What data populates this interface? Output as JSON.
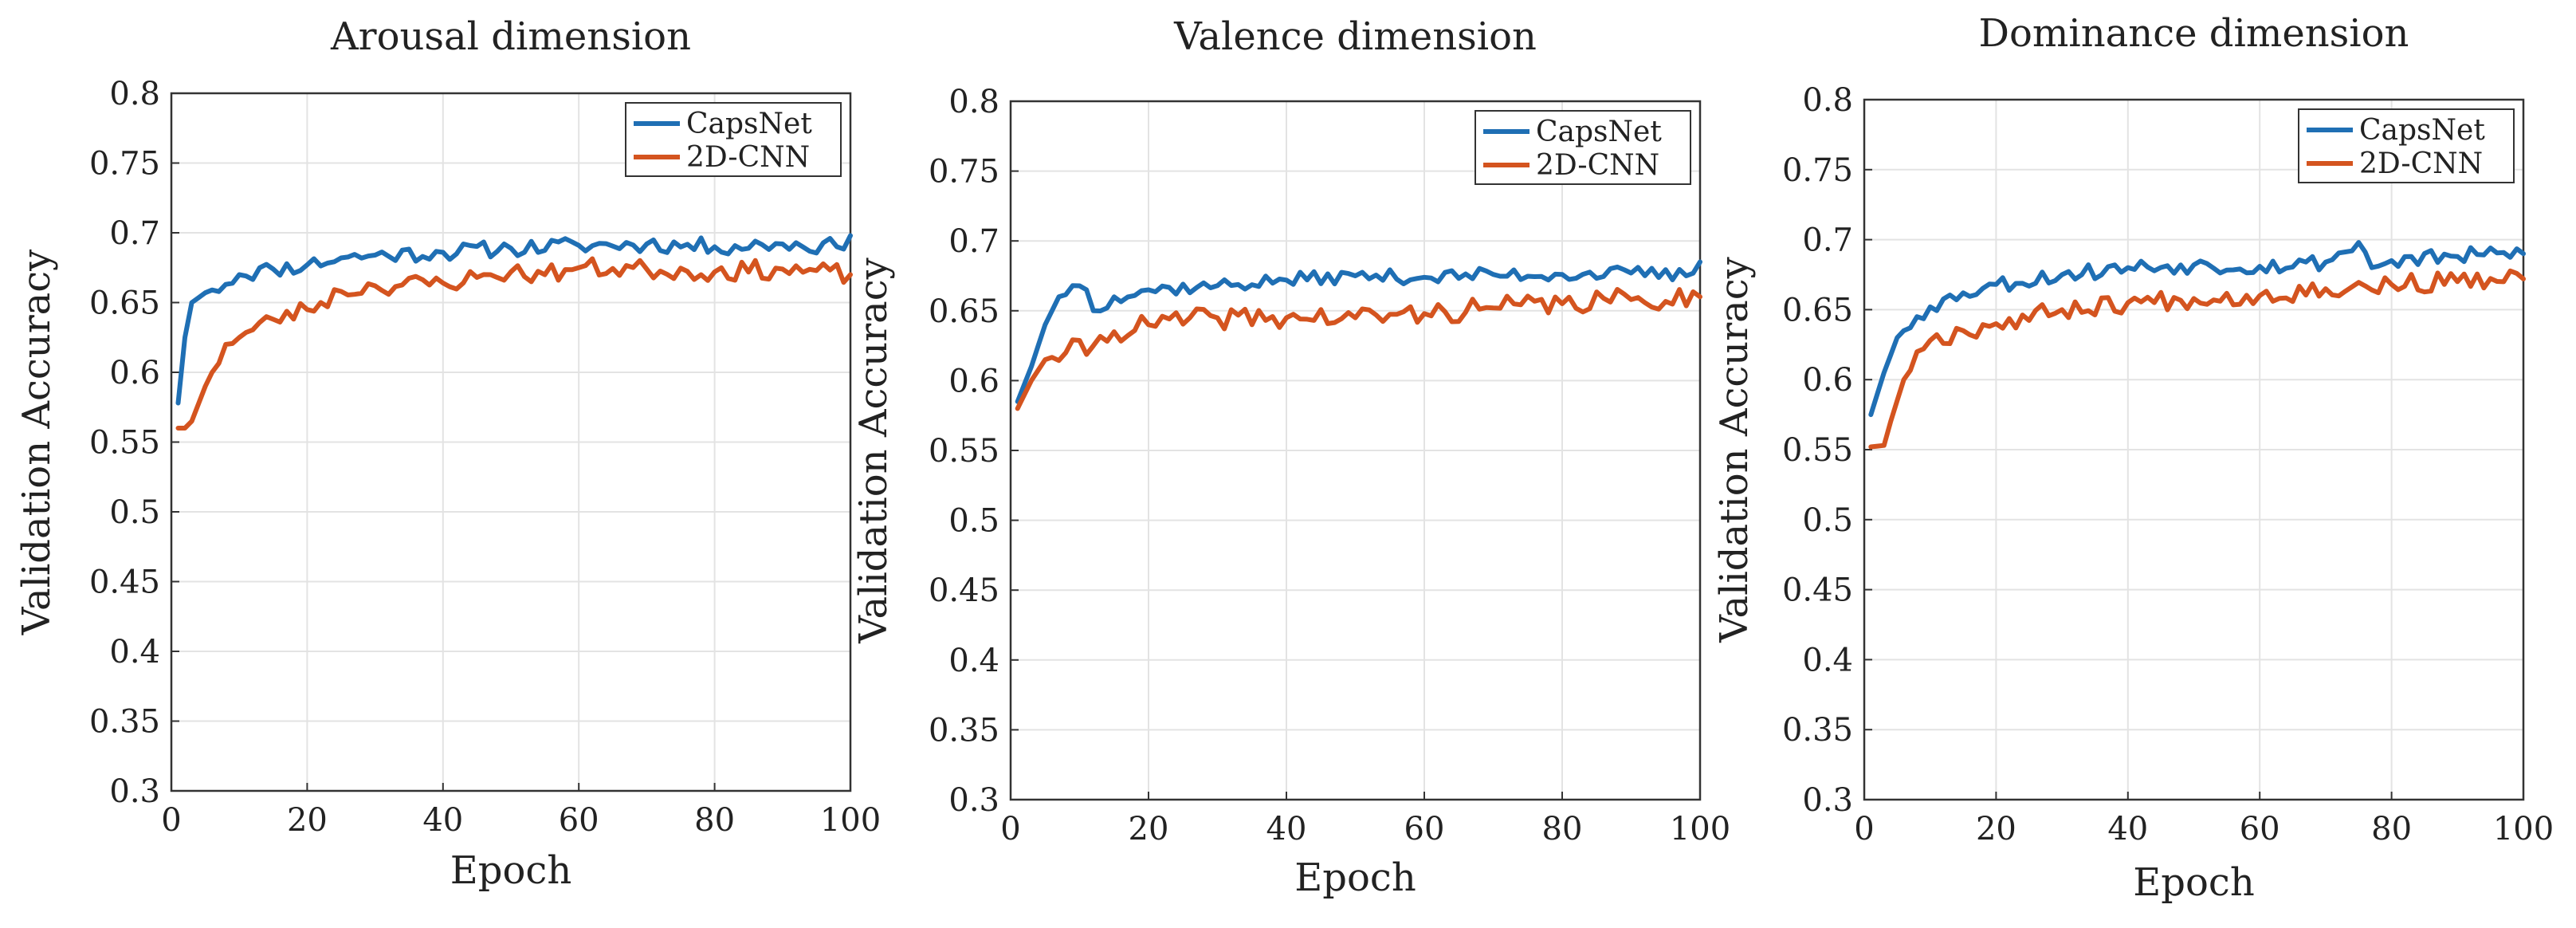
{
  "chart_data": [
    {
      "type": "line",
      "title": "Arousal dimension",
      "xlabel": "Epoch",
      "ylabel": "Validation Accuracy",
      "xlim": [
        0,
        100
      ],
      "ylim": [
        0.3,
        0.8
      ],
      "xticks": [
        "0",
        "20",
        "40",
        "60",
        "80",
        "100"
      ],
      "yticks": [
        "0.3",
        "0.35",
        "0.4",
        "0.45",
        "0.5",
        "0.55",
        "0.6",
        "0.65",
        "0.7",
        "0.75",
        "0.8"
      ],
      "grid": true,
      "legend_position": "top-right",
      "series": [
        {
          "name": "CapsNet",
          "color": "#1f6fb4",
          "key": [
            [
              1,
              0.578
            ],
            [
              2,
              0.625
            ],
            [
              3,
              0.65
            ],
            [
              5,
              0.657
            ],
            [
              8,
              0.663
            ],
            [
              10,
              0.67
            ],
            [
              15,
              0.674
            ],
            [
              20,
              0.677
            ],
            [
              25,
              0.682
            ],
            [
              30,
              0.684
            ],
            [
              40,
              0.686
            ],
            [
              50,
              0.689
            ],
            [
              60,
              0.691
            ],
            [
              70,
              0.692
            ],
            [
              80,
              0.69
            ],
            [
              90,
              0.692
            ],
            [
              98,
              0.69
            ],
            [
              100,
              0.698
            ]
          ],
          "noise": 0.006,
          "seed": 11
        },
        {
          "name": "2D-CNN",
          "color": "#d4541f",
          "key": [
            [
              1,
              0.56
            ],
            [
              2,
              0.56
            ],
            [
              3,
              0.565
            ],
            [
              5,
              0.59
            ],
            [
              8,
              0.62
            ],
            [
              10,
              0.625
            ],
            [
              15,
              0.638
            ],
            [
              20,
              0.645
            ],
            [
              25,
              0.658
            ],
            [
              30,
              0.662
            ],
            [
              40,
              0.664
            ],
            [
              45,
              0.668
            ],
            [
              50,
              0.672
            ],
            [
              55,
              0.67
            ],
            [
              60,
              0.675
            ],
            [
              70,
              0.674
            ],
            [
              80,
              0.672
            ],
            [
              90,
              0.674
            ],
            [
              100,
              0.67
            ]
          ],
          "noise": 0.007,
          "seed": 23
        }
      ]
    },
    {
      "type": "line",
      "title": "Valence dimension",
      "xlabel": "Epoch",
      "ylabel": "Validation Accuracy",
      "xlim": [
        0,
        100
      ],
      "ylim": [
        0.3,
        0.8
      ],
      "xticks": [
        "0",
        "20",
        "40",
        "60",
        "80",
        "100"
      ],
      "yticks": [
        "0.3",
        "0.35",
        "0.4",
        "0.45",
        "0.5",
        "0.55",
        "0.6",
        "0.65",
        "0.7",
        "0.75",
        "0.8"
      ],
      "grid": true,
      "legend_position": "top-right",
      "series": [
        {
          "name": "CapsNet",
          "color": "#1f6fb4",
          "key": [
            [
              1,
              0.585
            ],
            [
              3,
              0.61
            ],
            [
              5,
              0.64
            ],
            [
              7,
              0.66
            ],
            [
              9,
              0.668
            ],
            [
              11,
              0.665
            ],
            [
              12,
              0.65
            ],
            [
              15,
              0.66
            ],
            [
              20,
              0.665
            ],
            [
              30,
              0.668
            ],
            [
              40,
              0.672
            ],
            [
              50,
              0.675
            ],
            [
              60,
              0.674
            ],
            [
              70,
              0.676
            ],
            [
              80,
              0.676
            ],
            [
              90,
              0.677
            ],
            [
              98,
              0.675
            ],
            [
              100,
              0.685
            ]
          ],
          "noise": 0.005,
          "seed": 37
        },
        {
          "name": "2D-CNN",
          "color": "#d4541f",
          "key": [
            [
              1,
              0.58
            ],
            [
              3,
              0.6
            ],
            [
              5,
              0.615
            ],
            [
              8,
              0.62
            ],
            [
              12,
              0.625
            ],
            [
              15,
              0.635
            ],
            [
              20,
              0.64
            ],
            [
              30,
              0.645
            ],
            [
              40,
              0.645
            ],
            [
              50,
              0.645
            ],
            [
              60,
              0.648
            ],
            [
              70,
              0.652
            ],
            [
              80,
              0.655
            ],
            [
              90,
              0.658
            ],
            [
              100,
              0.66
            ]
          ],
          "noise": 0.008,
          "seed": 41
        }
      ]
    },
    {
      "type": "line",
      "title": "Dominance dimension",
      "xlabel": "Epoch",
      "ylabel": "Validation Accuracy",
      "xlim": [
        0,
        100
      ],
      "ylim": [
        0.3,
        0.8
      ],
      "xticks": [
        "0",
        "20",
        "40",
        "60",
        "80",
        "100"
      ],
      "yticks": [
        "0.3",
        "0.35",
        "0.4",
        "0.45",
        "0.5",
        "0.55",
        "0.6",
        "0.65",
        "0.7",
        "0.75",
        "0.8"
      ],
      "grid": true,
      "legend_position": "top-right",
      "series": [
        {
          "name": "CapsNet",
          "color": "#1f6fb4",
          "key": [
            [
              1,
              0.575
            ],
            [
              3,
              0.605
            ],
            [
              5,
              0.63
            ],
            [
              8,
              0.645
            ],
            [
              10,
              0.652
            ],
            [
              15,
              0.662
            ],
            [
              20,
              0.668
            ],
            [
              30,
              0.675
            ],
            [
              40,
              0.68
            ],
            [
              50,
              0.682
            ],
            [
              60,
              0.681
            ],
            [
              70,
              0.684
            ],
            [
              75,
              0.698
            ],
            [
              77,
              0.68
            ],
            [
              80,
              0.685
            ],
            [
              90,
              0.688
            ],
            [
              100,
              0.69
            ]
          ],
          "noise": 0.006,
          "seed": 53
        },
        {
          "name": "2D-CNN",
          "color": "#d4541f",
          "key": [
            [
              1,
              0.552
            ],
            [
              3,
              0.553
            ],
            [
              4,
              0.57
            ],
            [
              6,
              0.6
            ],
            [
              8,
              0.62
            ],
            [
              10,
              0.628
            ],
            [
              15,
              0.635
            ],
            [
              20,
              0.64
            ],
            [
              30,
              0.65
            ],
            [
              40,
              0.655
            ],
            [
              50,
              0.658
            ],
            [
              60,
              0.66
            ],
            [
              70,
              0.665
            ],
            [
              80,
              0.668
            ],
            [
              90,
              0.67
            ],
            [
              100,
              0.672
            ]
          ],
          "noise": 0.007,
          "seed": 67
        }
      ]
    }
  ]
}
